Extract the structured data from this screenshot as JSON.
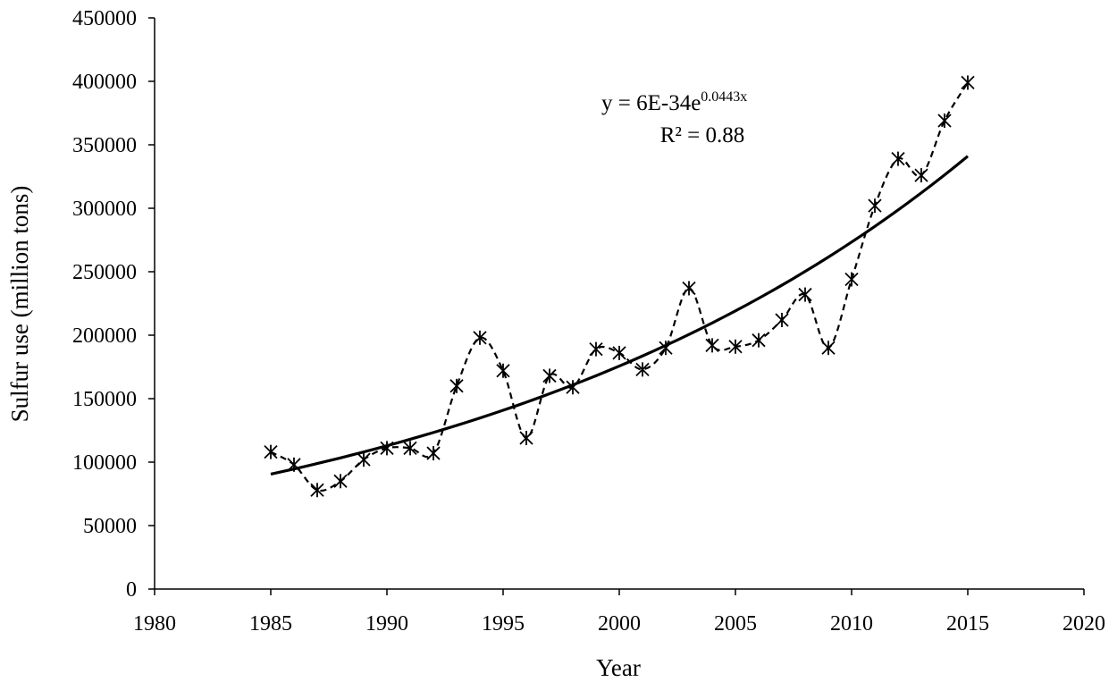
{
  "chart_data": {
    "type": "scatter",
    "xlabel": "Year",
    "ylabel": "Sulfur use  (million tons)",
    "xlim": [
      1980,
      2020
    ],
    "ylim": [
      0,
      450000
    ],
    "x_ticks": [
      1980,
      1985,
      1990,
      1995,
      2000,
      2005,
      2010,
      2015,
      2020
    ],
    "y_ticks": [
      0,
      50000,
      100000,
      150000,
      200000,
      250000,
      300000,
      350000,
      400000,
      450000
    ],
    "grid": false,
    "legend": "none",
    "series": [
      {
        "style": "dashed-smooth-line-with-star-markers",
        "color": "#000000",
        "x": [
          1985,
          1986,
          1987,
          1988,
          1989,
          1990,
          1991,
          1992,
          1993,
          1994,
          1995,
          1996,
          1997,
          1998,
          1999,
          2000,
          2001,
          2002,
          2003,
          2004,
          2005,
          2006,
          2007,
          2008,
          2009,
          2010,
          2011,
          2012,
          2013,
          2014,
          2015
        ],
        "y": [
          108000,
          98000,
          78000,
          85000,
          102000,
          111000,
          111000,
          107000,
          160000,
          198000,
          172000,
          119000,
          168000,
          159000,
          189000,
          186000,
          173000,
          190000,
          237000,
          192000,
          191000,
          196000,
          212000,
          232000,
          190000,
          244000,
          302000,
          339000,
          326000,
          369000,
          399000
        ]
      },
      {
        "style": "solid-trendline-exponential",
        "color": "#000000",
        "x_range": [
          1985,
          2015
        ],
        "y_start": 90500,
        "y_end": 341000
      }
    ],
    "annotation": {
      "equation_base": "y = 6E-34e",
      "equation_exponent": "0.0443x",
      "r_squared": "R² = 0.88"
    }
  }
}
